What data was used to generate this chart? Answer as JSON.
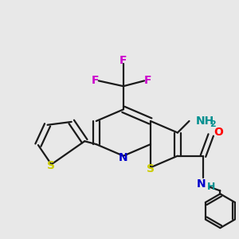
{
  "bg_color": "#e8e8e8",
  "line_color": "#1a1a1a",
  "line_width": 1.6,
  "atom_colors": {
    "C": "#1a1a1a",
    "N": "#0000cc",
    "S": "#cccc00",
    "O": "#ff0000",
    "F": "#cc00cc",
    "H_teal": "#009090"
  },
  "font_size": 10,
  "figsize": [
    3.0,
    3.0
  ],
  "dpi": 100
}
